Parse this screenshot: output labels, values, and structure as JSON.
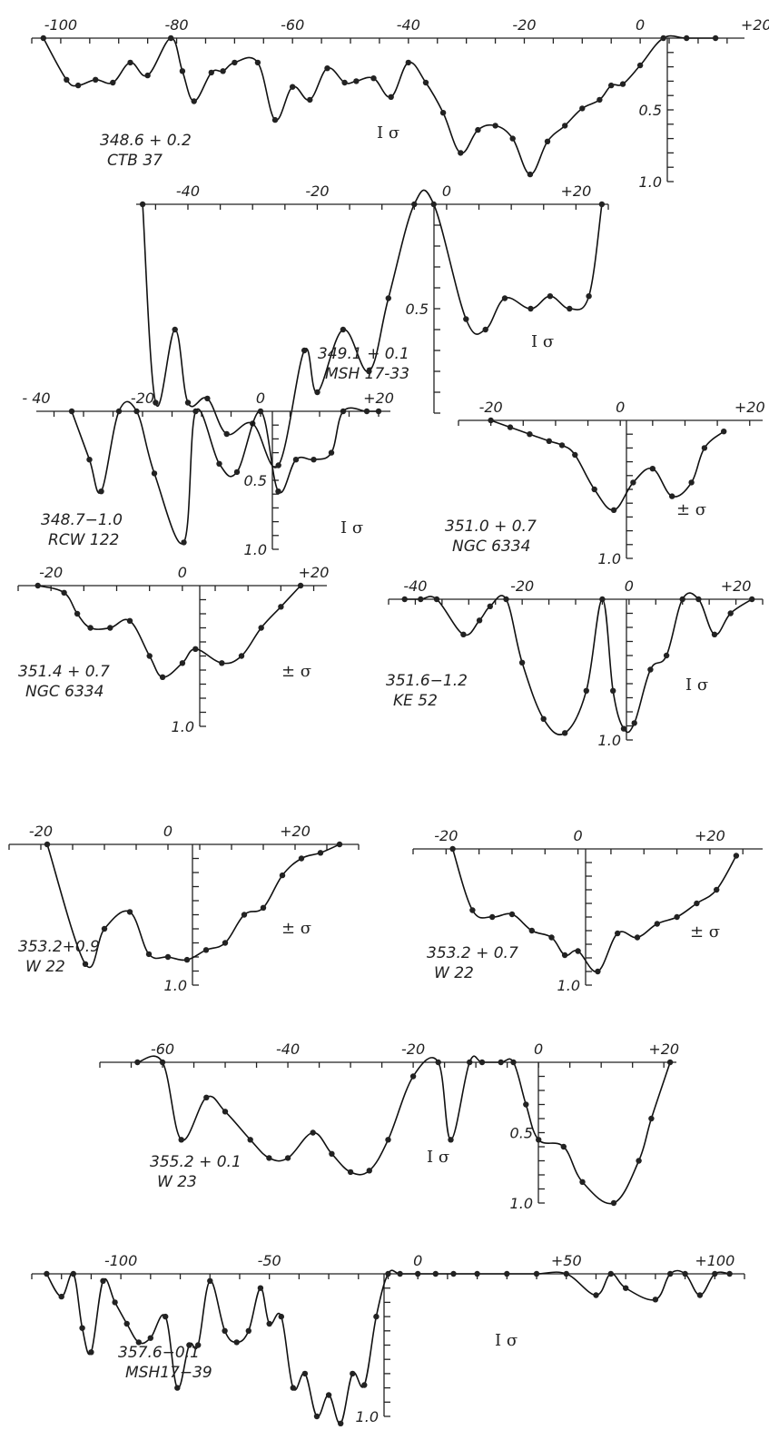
{
  "chart_data": [
    {
      "type": "line",
      "label_line1": "348.6 + 0.2",
      "label_line2": "CTB 37",
      "sigma": "I σ",
      "xticks": [
        "-100",
        "-80",
        "-60",
        "-40",
        "-20",
        "0",
        "+20"
      ],
      "yticks": [
        "0.5",
        "1.0"
      ],
      "x": [
        -103,
        -99,
        -97,
        -94,
        -91,
        -88,
        -85,
        -81,
        -79,
        -77,
        -74,
        -72,
        -70,
        -66,
        -63,
        -60,
        -57,
        -54,
        -51,
        -49,
        -46,
        -43,
        -40,
        -37,
        -34,
        -31,
        -28,
        -25,
        -22,
        -19,
        -16,
        -13,
        -10,
        -7,
        -5,
        -3,
        0,
        4,
        8,
        13
      ],
      "y": [
        0.0,
        0.29,
        0.33,
        0.29,
        0.31,
        0.17,
        0.26,
        0.0,
        0.23,
        0.44,
        0.24,
        0.23,
        0.17,
        0.17,
        0.57,
        0.34,
        0.43,
        0.21,
        0.31,
        0.3,
        0.28,
        0.41,
        0.17,
        0.31,
        0.52,
        0.8,
        0.64,
        0.61,
        0.7,
        0.95,
        0.72,
        0.61,
        0.49,
        0.43,
        0.33,
        0.32,
        0.19,
        0.0,
        0.0,
        0.0
      ]
    },
    {
      "type": "line",
      "label_line1": "349.1 + 0.1",
      "label_line2": "MSH 17-33",
      "sigma": "I σ",
      "xticks": [
        "-40",
        "-20",
        "0",
        "+20"
      ],
      "yticks": [
        "0.5"
      ],
      "x": [
        -47,
        -45,
        -42,
        -40,
        -37,
        -34,
        -30,
        -26,
        -22,
        -20,
        -16,
        -12,
        -9,
        -5,
        -2,
        3,
        6,
        9,
        13,
        16,
        19,
        22,
        24
      ],
      "y": [
        0.0,
        0.95,
        0.6,
        0.95,
        0.93,
        1.1,
        1.05,
        1.25,
        0.7,
        0.9,
        0.6,
        0.8,
        0.45,
        0.0,
        0.0,
        0.55,
        0.6,
        0.45,
        0.5,
        0.44,
        0.5,
        0.44,
        0.0
      ]
    },
    {
      "type": "line",
      "label_line1": "348.7−1.0",
      "label_line2": "RCW 122",
      "sigma": "I σ",
      "xticks": [
        "- 40",
        "-20",
        "0",
        "+20"
      ],
      "yticks": [
        "0.5",
        "1.0"
      ],
      "x": [
        -32,
        -29,
        -27,
        -24,
        -21,
        -18,
        -13,
        -11,
        -7,
        -4,
        0,
        3,
        6,
        9,
        12,
        14,
        18,
        20
      ],
      "y": [
        0.0,
        0.35,
        0.58,
        0.0,
        0.0,
        0.45,
        0.95,
        0.0,
        0.38,
        0.44,
        0.0,
        0.58,
        0.35,
        0.35,
        0.3,
        0.0,
        0.0,
        0.0
      ]
    },
    {
      "type": "line",
      "label_line1": "351.0 + 0.7",
      "label_line2": "NGC 6334",
      "sigma": "± σ",
      "xticks": [
        "-20",
        "0",
        "+20"
      ],
      "yticks": [
        "1.0"
      ],
      "x": [
        -20,
        -17,
        -14,
        -11,
        -9,
        -7,
        -4,
        -1,
        2,
        5,
        8,
        11,
        13,
        16
      ],
      "y": [
        0.0,
        0.05,
        0.1,
        0.15,
        0.18,
        0.25,
        0.5,
        0.65,
        0.45,
        0.35,
        0.55,
        0.45,
        0.2,
        0.08
      ]
    },
    {
      "type": "line",
      "label_line1": "351.4 + 0.7",
      "label_line2": "NGC 6334",
      "sigma": "± σ",
      "xticks": [
        "-20",
        "0",
        "+20"
      ],
      "yticks": [
        "1.0"
      ],
      "x": [
        -22,
        -18,
        -16,
        -14,
        -11,
        -8,
        -5,
        -3,
        0,
        2,
        6,
        9,
        12,
        15,
        18
      ],
      "y": [
        0.0,
        0.05,
        0.2,
        0.3,
        0.3,
        0.25,
        0.5,
        0.65,
        0.55,
        0.45,
        0.55,
        0.5,
        0.3,
        0.15,
        0.0
      ]
    },
    {
      "type": "line",
      "label_line1": "351.6−1.2",
      "label_line2": "KE 52",
      "sigma": "I σ",
      "xticks": [
        "-40",
        "-20",
        "0",
        "+20"
      ],
      "yticks": [
        "1.0"
      ],
      "x": [
        -42,
        -39,
        -36,
        -31,
        -28,
        -26,
        -23,
        -20,
        -16,
        -12,
        -8,
        -5,
        -3,
        -1,
        1,
        4,
        7,
        10,
        13,
        16,
        19,
        23
      ],
      "y": [
        0.0,
        0.0,
        0.0,
        0.25,
        0.15,
        0.05,
        0.0,
        0.45,
        0.85,
        0.95,
        0.65,
        0.0,
        0.65,
        0.92,
        0.88,
        0.5,
        0.4,
        0.0,
        0.0,
        0.25,
        0.1,
        0.0
      ]
    },
    {
      "type": "line",
      "label_line1": "353.2+0.9",
      "label_line2": "W 22",
      "sigma": "± σ",
      "xticks": [
        "-20",
        "0",
        "+20"
      ],
      "yticks": [
        "1.0"
      ],
      "x": [
        -19,
        -13,
        -10,
        -6,
        -3,
        0,
        3,
        6,
        9,
        12,
        15,
        18,
        21,
        24,
        27
      ],
      "y": [
        0.0,
        0.85,
        0.6,
        0.48,
        0.78,
        0.8,
        0.82,
        0.75,
        0.7,
        0.5,
        0.45,
        0.22,
        0.1,
        0.06,
        0.0
      ]
    },
    {
      "type": "line",
      "label_line1": "353.2 + 0.7",
      "label_line2": "W 22",
      "sigma": "± σ",
      "xticks": [
        "-20",
        "0",
        "+20"
      ],
      "yticks": [
        "1.0"
      ],
      "x": [
        -19,
        -16,
        -13,
        -10,
        -7,
        -4,
        -2,
        0,
        3,
        6,
        9,
        12,
        15,
        18,
        21,
        24
      ],
      "y": [
        0.0,
        0.45,
        0.5,
        0.48,
        0.6,
        0.65,
        0.78,
        0.75,
        0.9,
        0.62,
        0.65,
        0.55,
        0.5,
        0.4,
        0.3,
        0.05
      ]
    },
    {
      "type": "line",
      "label_line1": "355.2 + 0.1",
      "label_line2": "W 23",
      "sigma": "I σ",
      "xticks": [
        "-60",
        "0",
        "-40",
        "-20",
        "+20"
      ],
      "yticks": [
        "0.5",
        "1.0"
      ],
      "x": [
        -64,
        -60,
        -57,
        -53,
        -50,
        -46,
        -43,
        -40,
        -36,
        -33,
        -30,
        -27,
        -24,
        -20,
        -16,
        -14,
        -11,
        -9,
        -6,
        -4,
        -2,
        0,
        4,
        7,
        12,
        16,
        18,
        21
      ],
      "y": [
        0.0,
        0.0,
        0.55,
        0.25,
        0.35,
        0.55,
        0.68,
        0.68,
        0.5,
        0.65,
        0.78,
        0.77,
        0.55,
        0.1,
        0.0,
        0.55,
        0.0,
        0.0,
        0.0,
        0.0,
        0.3,
        0.55,
        0.6,
        0.85,
        1.0,
        0.7,
        0.4,
        0.0
      ]
    },
    {
      "type": "line",
      "label_line1": "357.6−0.1",
      "label_line2": "MSH17−39",
      "sigma": "I σ",
      "xticks": [
        "-100",
        "-50",
        "0",
        "+50",
        "+100"
      ],
      "yticks": [
        "1.0"
      ],
      "x": [
        -125,
        -120,
        -116,
        -113,
        -110,
        -106,
        -102,
        -98,
        -94,
        -90,
        -85,
        -81,
        -77,
        -74,
        -70,
        -65,
        -61,
        -57,
        -53,
        -50,
        -46,
        -42,
        -38,
        -34,
        -30,
        -26,
        -22,
        -18,
        -14,
        -10,
        -6,
        0,
        6,
        12,
        20,
        30,
        40,
        50,
        60,
        65,
        70,
        80,
        85,
        90,
        95,
        100,
        105
      ],
      "y": [
        0.0,
        0.16,
        0.0,
        0.38,
        0.55,
        0.05,
        0.2,
        0.35,
        0.48,
        0.45,
        0.3,
        0.8,
        0.5,
        0.5,
        0.05,
        0.4,
        0.48,
        0.4,
        0.1,
        0.35,
        0.3,
        0.8,
        0.7,
        1.0,
        0.85,
        1.05,
        0.7,
        0.78,
        0.3,
        0.0,
        0.0,
        0.0,
        0.0,
        0.0,
        0.0,
        0.0,
        0.0,
        0.0,
        0.15,
        0.0,
        0.1,
        0.18,
        0.0,
        0.0,
        0.15,
        0.0,
        0.0
      ]
    }
  ]
}
